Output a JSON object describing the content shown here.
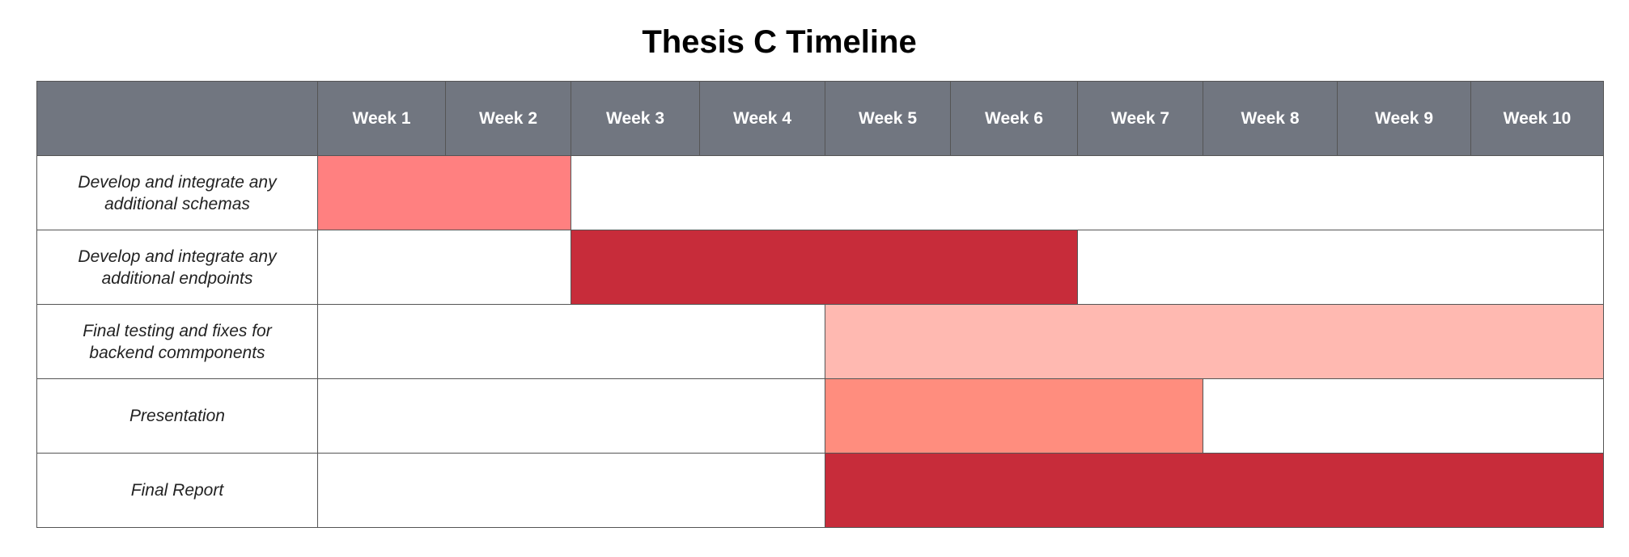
{
  "chart_data": {
    "type": "table",
    "title": "Thesis C Timeline",
    "weeks": [
      "Week 1",
      "Week 2",
      "Week 3",
      "Week 4",
      "Week 5",
      "Week 6",
      "Week 7",
      "Week 8",
      "Week 9",
      "Week 10"
    ],
    "tasks": [
      {
        "name": "Develop and integrate any additional schemas",
        "start_week": 1,
        "end_week": 2,
        "color": "#ff8080"
      },
      {
        "name": "Develop and integrate any additional endpoints",
        "start_week": 3,
        "end_week": 6,
        "color": "#c72c3a"
      },
      {
        "name": "Final testing and fixes for backend commponents",
        "start_week": 5,
        "end_week": 10,
        "color": "#ffb9b1"
      },
      {
        "name": "Presentation",
        "start_week": 5,
        "end_week": 7,
        "color": "#ff8d7e"
      },
      {
        "name": "Final Report",
        "start_week": 5,
        "end_week": 10,
        "color": "#c72c3a"
      }
    ],
    "header_color": "#717680"
  }
}
